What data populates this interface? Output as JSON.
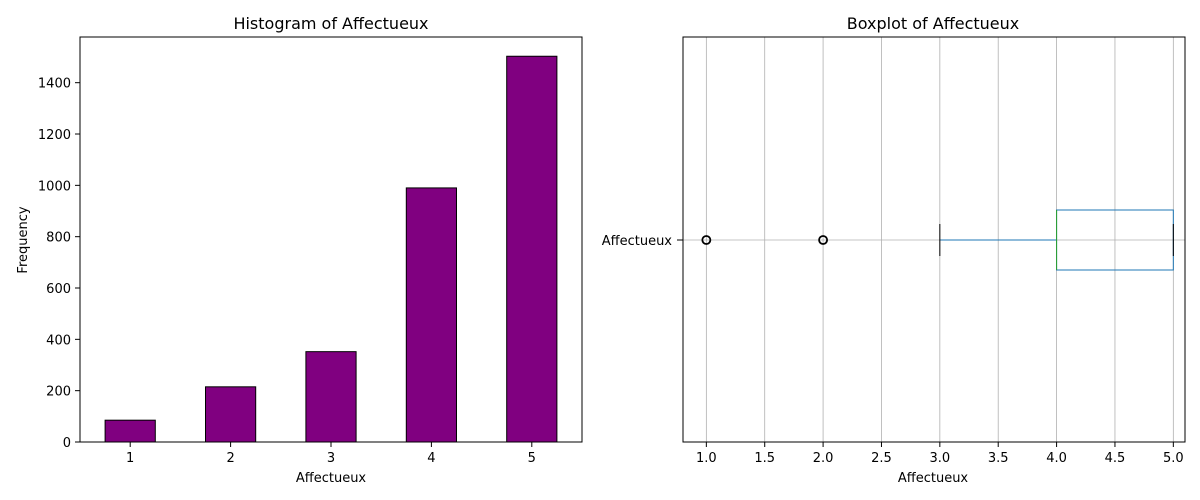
{
  "chart_data": [
    {
      "type": "bar",
      "title": "Histogram of Affectueux",
      "xlabel": "Affectueux",
      "ylabel": "Frequency",
      "categories": [
        "1",
        "2",
        "3",
        "4",
        "5"
      ],
      "values": [
        85,
        215,
        352,
        990,
        1503
      ],
      "ylim": [
        0,
        1578
      ],
      "yticks": [
        0,
        200,
        400,
        600,
        800,
        1000,
        1200,
        1400
      ],
      "grid": false,
      "colors": {
        "bar_fill": "#800080",
        "bar_edge": "#000000"
      }
    },
    {
      "type": "boxplot",
      "title": "Boxplot of Affectueux",
      "xlabel": "Affectueux",
      "category": "Affectueux",
      "xlim": [
        0.8,
        5.1
      ],
      "xticks": [
        "1.0",
        "1.5",
        "2.0",
        "2.5",
        "3.0",
        "3.5",
        "4.0",
        "4.5",
        "5.0"
      ],
      "q1": 4.0,
      "median": 4.0,
      "q3": 5.0,
      "whisker_low": 3.0,
      "whisker_high": 5.0,
      "outliers": [
        1.0,
        2.0
      ],
      "grid": true,
      "colors": {
        "box": "#1f77b4",
        "median": "#2ca02c",
        "grid": "#b0b0b0"
      }
    }
  ]
}
